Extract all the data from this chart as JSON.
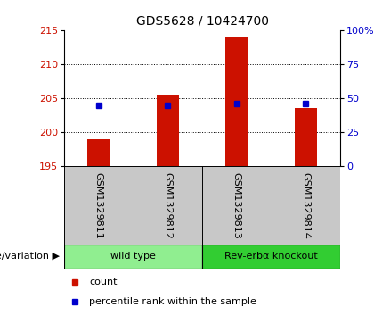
{
  "title": "GDS5628 / 10424700",
  "samples": [
    "GSM1329811",
    "GSM1329812",
    "GSM1329813",
    "GSM1329814"
  ],
  "count_values": [
    199.0,
    205.5,
    214.0,
    203.5
  ],
  "percentile_values": [
    204.0,
    204.0,
    204.2,
    204.2
  ],
  "y_min": 195,
  "y_max": 215,
  "y_ticks": [
    195,
    200,
    205,
    210,
    215
  ],
  "y_right_ticks": [
    0,
    25,
    50,
    75,
    100
  ],
  "y_right_labels": [
    "0",
    "25",
    "50",
    "75",
    "100%"
  ],
  "bar_bottom": 195,
  "groups": [
    {
      "label": "wild type",
      "samples": [
        0,
        1
      ],
      "color": "#90ee90"
    },
    {
      "label": "Rev-erbα knockout",
      "samples": [
        2,
        3
      ],
      "color": "#32cd32"
    }
  ],
  "bar_color": "#cc1100",
  "marker_color": "#0000cc",
  "left_label_color": "#cc1100",
  "right_label_color": "#0000cc",
  "background_plot": "#ffffff",
  "background_table": "#c8c8c8",
  "title_fontsize": 10,
  "axis_fontsize": 8,
  "tick_fontsize": 8,
  "legend_fontsize": 8,
  "bar_width": 0.32,
  "genotype_label": "genotype/variation ▶"
}
